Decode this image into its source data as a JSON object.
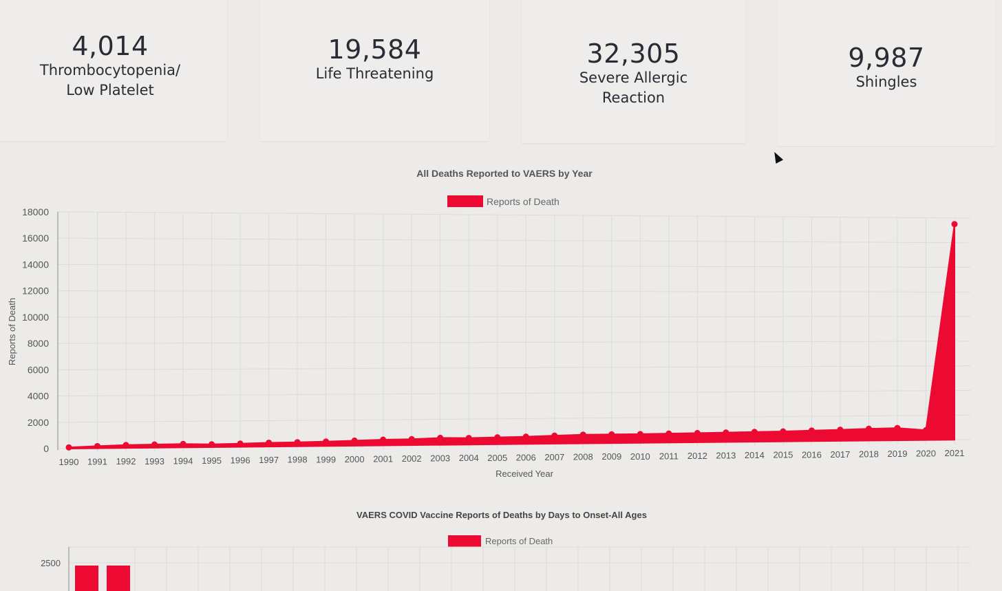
{
  "stats": [
    {
      "value": "4,014",
      "label": "Thrombocytopenia/\nLow Platelet"
    },
    {
      "value": "19,584",
      "label": "Life Threatening"
    },
    {
      "value": "32,305",
      "label": "Severe Allergic\nReaction"
    },
    {
      "value": "9,987",
      "label": "Shingles"
    }
  ],
  "colors": {
    "series": "#ec0a32",
    "grid": "#dcdbd8",
    "axis": "#777777"
  },
  "chart_data": [
    {
      "type": "area",
      "title": "All Deaths Reported to VAERS by Year",
      "legend": [
        "Reports of Death"
      ],
      "legend_position": "top",
      "xlabel": "Received Year",
      "ylabel": "Reports of Death",
      "ylim": [
        0,
        18000
      ],
      "yticks": [
        0,
        2000,
        4000,
        6000,
        8000,
        10000,
        12000,
        14000,
        16000,
        18000
      ],
      "grid": true,
      "categories": [
        "1990",
        "1991",
        "1992",
        "1993",
        "1994",
        "1995",
        "1996",
        "1997",
        "1998",
        "1999",
        "2000",
        "2001",
        "2002",
        "2003",
        "2004",
        "2005",
        "2006",
        "2007",
        "2008",
        "2009",
        "2010",
        "2011",
        "2012",
        "2013",
        "2014",
        "2015",
        "2016",
        "2017",
        "2018",
        "2019",
        "2020",
        "2021"
      ],
      "series": [
        {
          "name": "Reports of Death",
          "values": [
            90,
            170,
            230,
            250,
            270,
            220,
            250,
            300,
            320,
            350,
            400,
            450,
            470,
            550,
            520,
            550,
            580,
            640,
            700,
            700,
            700,
            720,
            740,
            760,
            790,
            810,
            860,
            900,
            960,
            1000,
            800,
            17500
          ]
        }
      ]
    },
    {
      "type": "bar",
      "title": "VAERS COVID Vaccine Reports of Deaths by Days to Onset-All Ages",
      "legend": [
        "Reports of Death"
      ],
      "legend_position": "top",
      "yticks_visible": [
        2500
      ],
      "grid": true,
      "series": [
        {
          "name": "Reports of Death",
          "values": [
            2300,
            2300
          ]
        }
      ]
    }
  ]
}
